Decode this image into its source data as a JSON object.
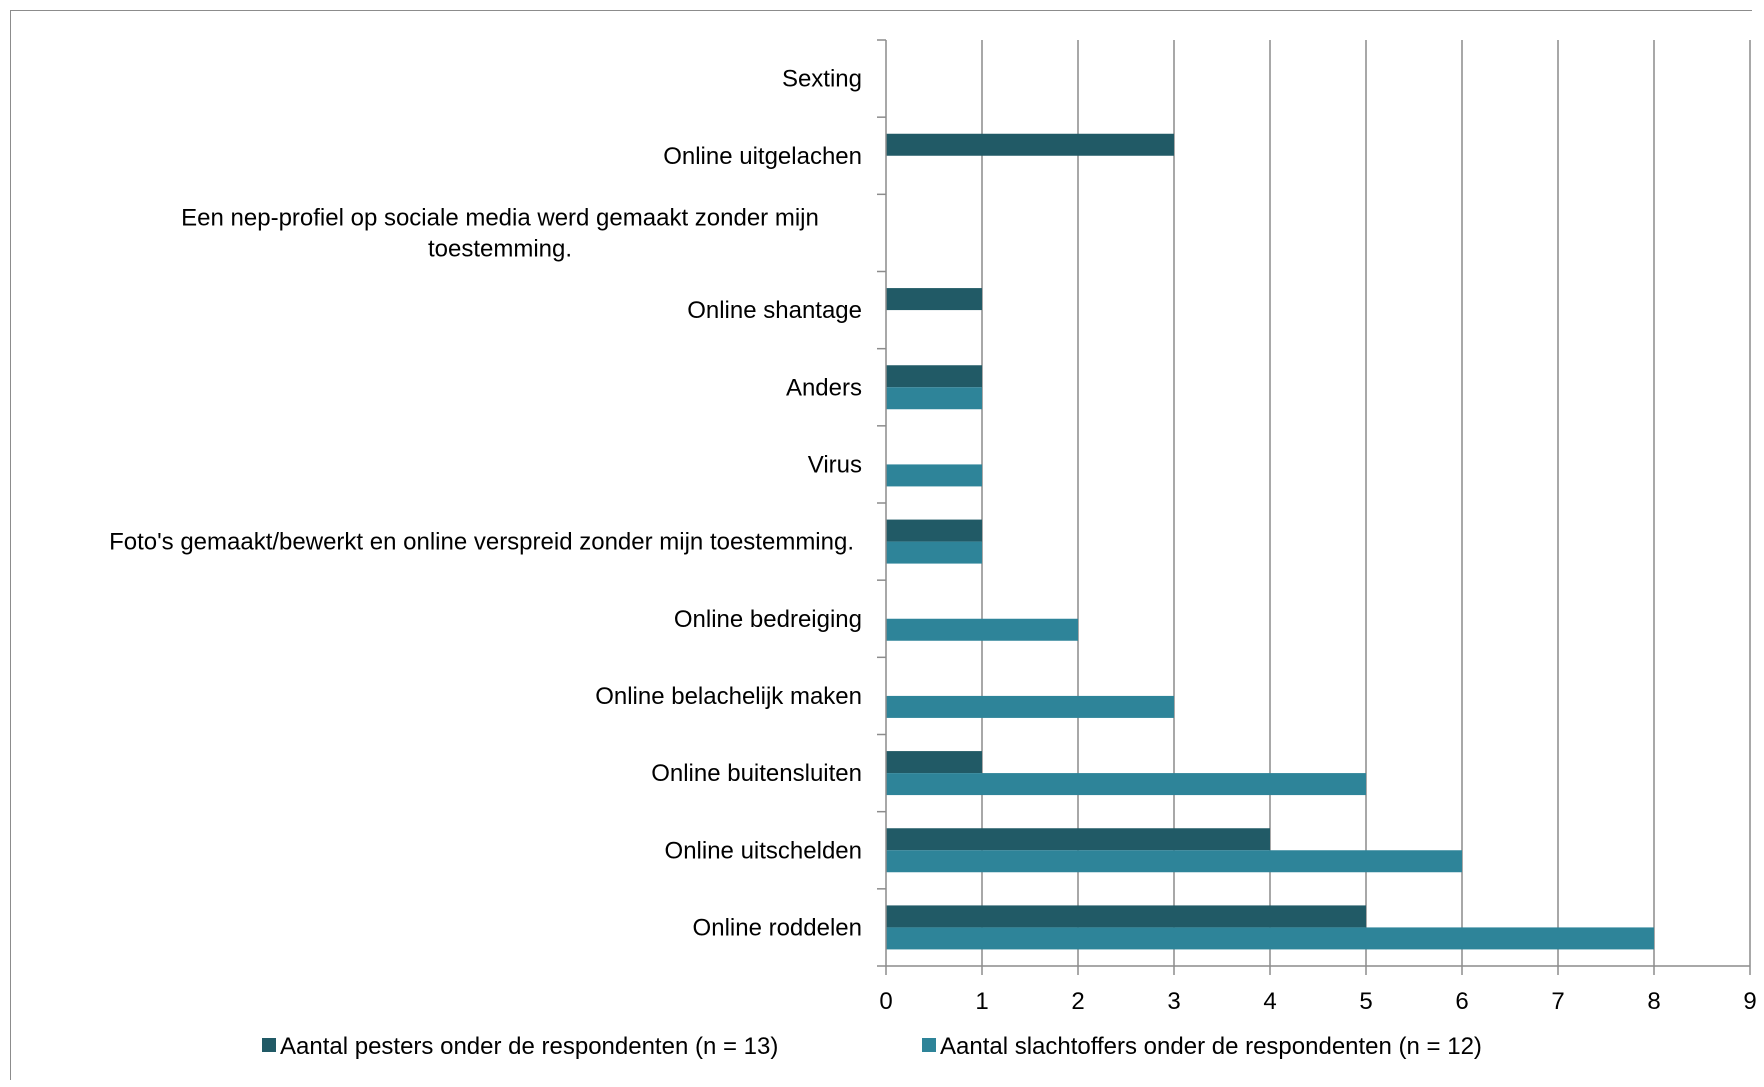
{
  "chart_data": {
    "type": "bar",
    "orientation": "horizontal",
    "categories": [
      "Sexting",
      "Online uitgelachen",
      [
        "Een nep-profiel op sociale media werd gemaakt zonder mijn",
        "toestemming."
      ],
      "Online shantage",
      "Anders",
      "Virus",
      "Foto's gemaakt/bewerkt en online verspreid zonder mijn toestemming.",
      "Online bedreiging",
      "Online belachelijk maken",
      "Online buitensluiten",
      "Online uitschelden",
      "Online roddelen"
    ],
    "series": [
      {
        "name": "Aantal pesters onder de respondenten (n = 13)",
        "color": "#215a66",
        "values": [
          0,
          3,
          0,
          1,
          1,
          0,
          1,
          0,
          0,
          1,
          4,
          5
        ]
      },
      {
        "name": "Aantal slachtoffers onder de respondenten (n = 12)",
        "color": "#2e8499",
        "values": [
          0,
          0,
          0,
          0,
          1,
          1,
          1,
          2,
          3,
          5,
          6,
          8
        ]
      }
    ],
    "xlim": [
      0,
      9
    ],
    "xticks": [
      "0",
      "1",
      "2",
      "3",
      "4",
      "5",
      "6",
      "7",
      "8",
      "9"
    ],
    "grid": "vertical",
    "legend": "bottom"
  }
}
